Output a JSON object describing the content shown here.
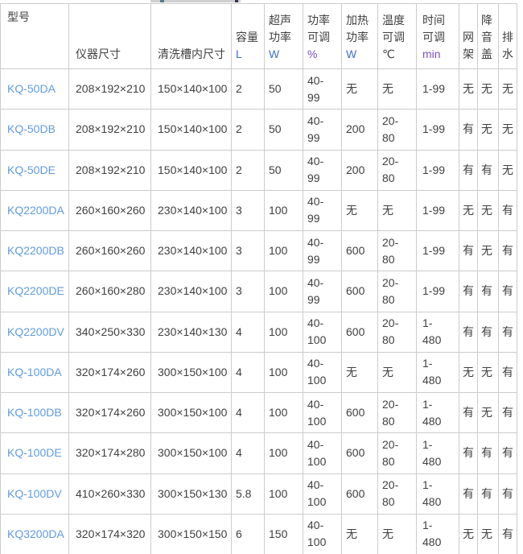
{
  "colors": {
    "link_blue": "#5f9ce0",
    "unit_blue": "#3e6fca",
    "unit_purple": "#7d4fc8",
    "body_text": "#404040",
    "border": "#cccccc"
  },
  "table": {
    "columns": [
      {
        "id": "model",
        "label": "型号",
        "unit": "",
        "unit_style": "none"
      },
      {
        "id": "instrument-size",
        "label": "仪器尺寸",
        "unit": "",
        "unit_style": "none"
      },
      {
        "id": "tank-size",
        "label": "清洗槽内尺寸",
        "unit": "",
        "unit_style": "none"
      },
      {
        "id": "capacity",
        "label": "容量",
        "unit": "L",
        "unit_style": "blue"
      },
      {
        "id": "ultrasonic-power",
        "label": "超声功率",
        "unit": "W",
        "unit_style": "blue"
      },
      {
        "id": "power-adjustable",
        "label": "功率可调",
        "unit": "%",
        "unit_style": "purple"
      },
      {
        "id": "heating-power",
        "label": "加热功率",
        "unit": "W",
        "unit_style": "blue"
      },
      {
        "id": "temp-adjustable",
        "label": "温度可调",
        "unit": "℃",
        "unit_style": "dark"
      },
      {
        "id": "time-adjustable",
        "label": "时间可调",
        "unit": "min",
        "unit_style": "purple"
      },
      {
        "id": "rack",
        "label": "网架",
        "unit": "",
        "unit_style": "none"
      },
      {
        "id": "noise-lid",
        "label": "降音盖",
        "unit": "",
        "unit_style": "none"
      },
      {
        "id": "drain",
        "label": "排水",
        "unit": "",
        "unit_style": "none"
      }
    ],
    "rows": [
      {
        "cells": [
          "KQ-50DA",
          "208×192×210",
          "150×140×100",
          "2",
          "50",
          "40-99",
          "无",
          "无",
          "1-99",
          "无",
          "无",
          "无"
        ]
      },
      {
        "cells": [
          "KQ-50DB",
          "208×192×210",
          "150×140×100",
          "2",
          "50",
          "40-99",
          "200",
          "20-80",
          "1-99",
          "有",
          "无",
          "无"
        ]
      },
      {
        "cells": [
          "KQ-50DE",
          "208×192×210",
          "150×140×100",
          "2",
          "50",
          "40-99",
          "200",
          "20-80",
          "1-99",
          "有",
          "有",
          "无"
        ]
      },
      {
        "cells": [
          "KQ2200DA",
          "260×160×260",
          "230×140×100",
          "3",
          "100",
          "40-99",
          "无",
          "无",
          "1-99",
          "无",
          "无",
          "有"
        ]
      },
      {
        "cells": [
          "KQ2200DB",
          "260×160×260",
          "230×140×100",
          "3",
          "100",
          "40-99",
          "600",
          "20-80",
          "1-99",
          "有",
          "无",
          "有"
        ]
      },
      {
        "cells": [
          "KQ2200DE",
          "260×160×280",
          "230×140×100",
          "3",
          "100",
          "40-99",
          "600",
          "20-80",
          "1-99",
          "有",
          "有",
          "有"
        ]
      },
      {
        "cells": [
          "KQ2200DV",
          "340×250×330",
          "230×140×130",
          "4",
          "100",
          "40-100",
          "600",
          "20-80",
          "1-480",
          "有",
          "有",
          "有"
        ]
      },
      {
        "cells": [
          "KQ-100DA",
          "320×174×260",
          "300×150×100",
          "4",
          "100",
          "40-100",
          "无",
          "无",
          "1-480",
          "无",
          "无",
          "有"
        ]
      },
      {
        "cells": [
          "KQ-100DB",
          "320×174×260",
          "300×150×100",
          "4",
          "100",
          "40-100",
          "600",
          "20-80",
          "1-480",
          "有",
          "无",
          "有"
        ]
      },
      {
        "cells": [
          "KQ-100DE",
          "320×174×280",
          "300×150×100",
          "4",
          "100",
          "40-100",
          "600",
          "20-80",
          "1-480",
          "有",
          "有",
          "有"
        ]
      },
      {
        "cells": [
          "KQ-100DV",
          "410×260×330",
          "300×150×130",
          "5.8",
          "100",
          "40-100",
          "600",
          "20-80",
          "1-480",
          "有",
          "有",
          "有"
        ]
      },
      {
        "cells": [
          "KQ3200DA",
          "320×174×320",
          "300×150×150",
          "6",
          "150",
          "40-100",
          "无",
          "无",
          "1-480",
          "无",
          "无",
          "有"
        ]
      }
    ]
  }
}
